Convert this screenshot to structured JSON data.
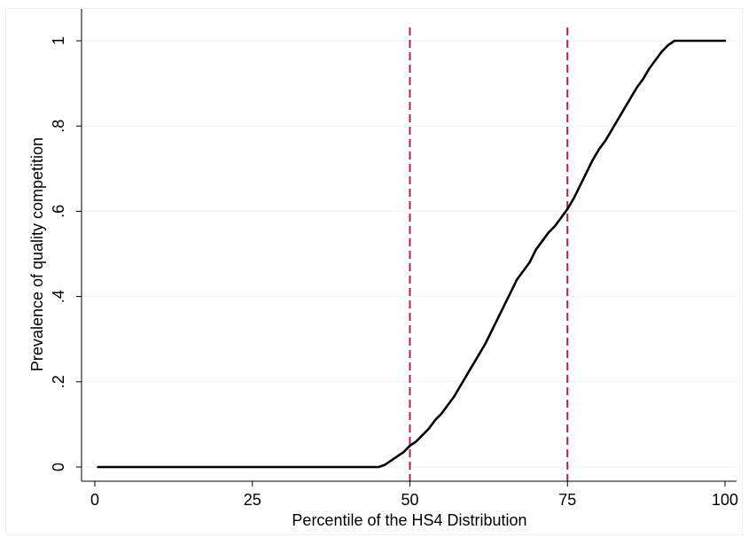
{
  "chart_data": {
    "type": "line",
    "title": "",
    "xlabel": "Percentile of the HS4 Distribution",
    "ylabel": "Prevalence of quality competition",
    "xlim": [
      0,
      100
    ],
    "ylim": [
      0,
      1
    ],
    "xticks": [
      0,
      25,
      50,
      75,
      100
    ],
    "xtick_labels": [
      "0",
      "25",
      "50",
      "75",
      "100"
    ],
    "yticks": [
      0,
      0.2,
      0.4,
      0.6,
      0.8,
      1
    ],
    "ytick_labels": [
      "0",
      ".2",
      ".4",
      ".6",
      ".8",
      "1"
    ],
    "grid": "horizontal",
    "legend": "none",
    "colors": {
      "line": "#000000",
      "reference": "#b0224a",
      "grid": "#eaf2f3"
    },
    "reference_lines": [
      {
        "axis": "x",
        "value": 50,
        "style": "dashed"
      },
      {
        "axis": "x",
        "value": 75,
        "style": "dashed"
      }
    ],
    "series": [
      {
        "x": [
          0.5,
          10,
          20,
          30,
          40,
          45,
          46,
          47,
          48,
          49,
          50,
          51,
          52,
          53,
          54,
          55,
          56,
          57,
          58,
          59,
          60,
          61,
          62,
          63,
          64,
          65,
          66,
          67,
          68,
          69,
          70,
          71,
          72,
          73,
          74,
          75,
          76,
          77,
          78,
          79,
          80,
          81,
          82,
          83,
          84,
          85,
          86,
          87,
          88,
          89,
          90,
          91,
          92,
          93,
          95,
          97,
          100
        ],
        "y": [
          0,
          0,
          0,
          0,
          0,
          0,
          0.005,
          0.015,
          0.025,
          0.035,
          0.05,
          0.06,
          0.075,
          0.09,
          0.11,
          0.125,
          0.145,
          0.165,
          0.19,
          0.215,
          0.24,
          0.265,
          0.29,
          0.32,
          0.35,
          0.38,
          0.41,
          0.44,
          0.46,
          0.48,
          0.51,
          0.53,
          0.55,
          0.565,
          0.585,
          0.605,
          0.63,
          0.66,
          0.69,
          0.72,
          0.745,
          0.765,
          0.79,
          0.815,
          0.84,
          0.865,
          0.89,
          0.91,
          0.935,
          0.955,
          0.975,
          0.99,
          1,
          1,
          1,
          1,
          1
        ]
      }
    ]
  }
}
